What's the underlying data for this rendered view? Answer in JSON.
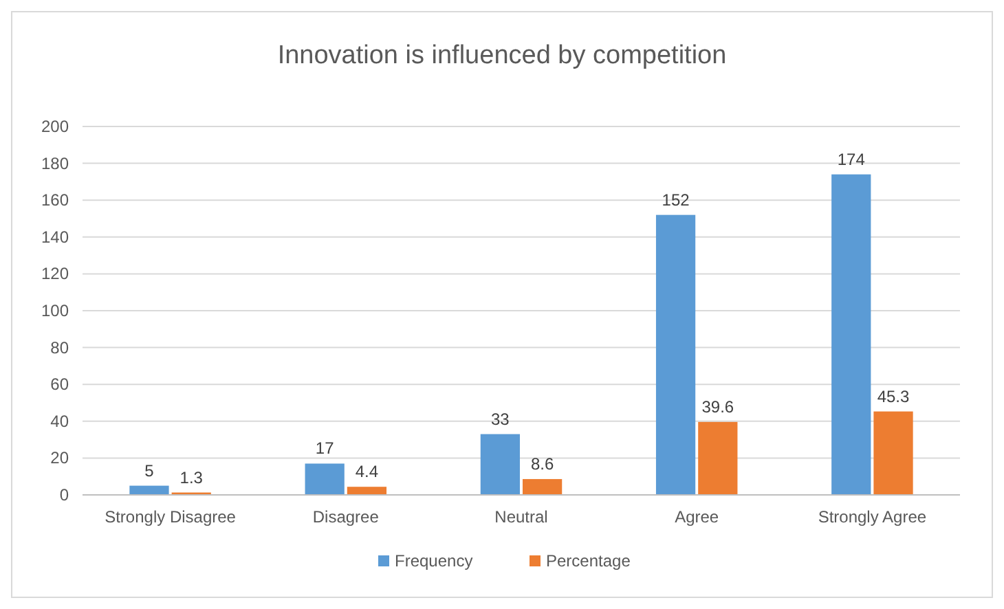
{
  "chart_data": {
    "type": "bar",
    "title": "Innovation is influenced by competition",
    "categories": [
      "Strongly Disagree",
      "Disagree",
      "Neutral",
      "Agree",
      "Strongly Agree"
    ],
    "series": [
      {
        "name": "Frequency",
        "color": "#5b9bd5",
        "values": [
          5,
          17,
          33,
          152,
          174
        ]
      },
      {
        "name": "Percentage",
        "color": "#ed7d31",
        "values": [
          1.3,
          4.4,
          8.6,
          39.6,
          45.3
        ]
      }
    ],
    "ylim": [
      0,
      200
    ],
    "yticks": [
      0,
      20,
      40,
      60,
      80,
      100,
      120,
      140,
      160,
      180,
      200
    ],
    "grid": "y",
    "legend": "bottom",
    "data_labels": true
  }
}
